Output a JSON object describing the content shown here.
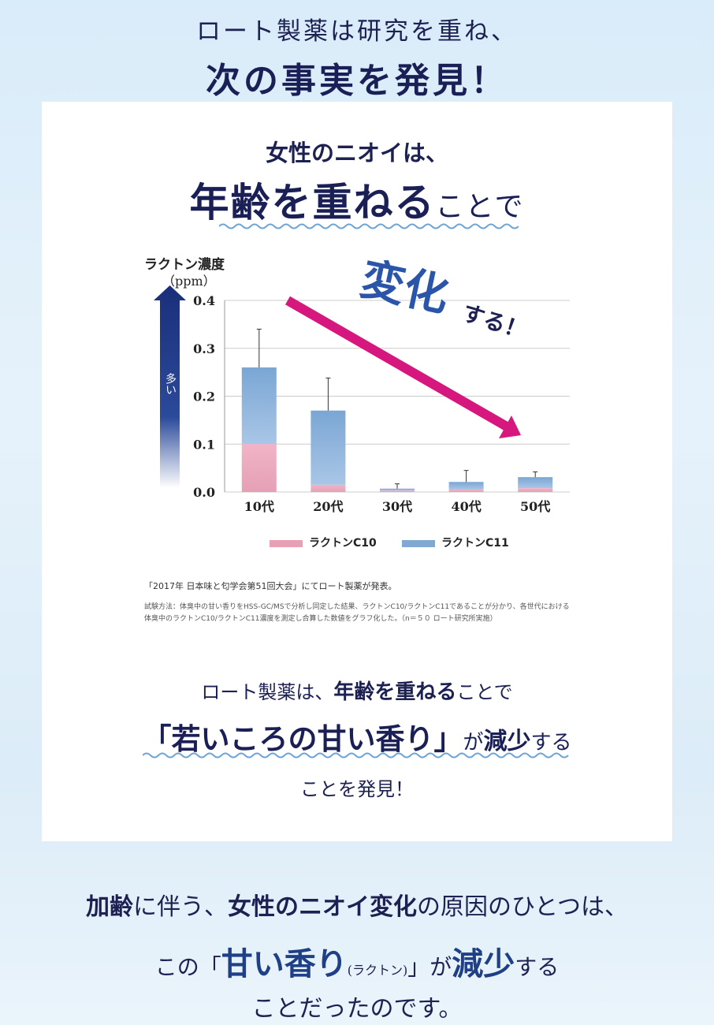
{
  "header": {
    "line1": "ロート製薬は研究を重ね、",
    "line2": "次の事実を発見！"
  },
  "card": {
    "subtitle": "女性のニオイは、",
    "title_strong": "年齢を重ねる",
    "title_rest": "ことで",
    "henka_big": "変化",
    "henka_rest": "する！",
    "source": "「2017年 日本味と匂学会第51回大会」にてロート製薬が発表。",
    "method": "試験方法：体臭中の甘い香りをHSS-GC/MSで分析し同定した結果、ラクトンC10/ラクトンC11であることが分かり、各世代における体臭中のラクトンC10/ラクトンC11濃度を測定し合算した数値をグラフ化した。（n＝５０ ロート研究所実施）",
    "conclusion_line1_a": "ロート製薬は、",
    "conclusion_line1_b": "年齢を重ねる",
    "conclusion_line1_c": "ことで",
    "conclusion_line2_a": "「若いころの甘い香り」",
    "conclusion_line2_b": "が",
    "conclusion_line2_c": "減少",
    "conclusion_line2_d": "する",
    "conclusion_line3": "ことを発見！"
  },
  "bottom": {
    "line1_a": "加齢",
    "line1_b": "に伴う、",
    "line1_c": "女性のニオイ変化",
    "line1_d": "の原因のひとつは、",
    "line2_a": "この「",
    "line2_b": "甘い香り",
    "line2_c": "(ラクトン)",
    "line2_d": "」が",
    "line2_e": "減少",
    "line2_f": "する",
    "line3": "ことだったのです。"
  },
  "chart_data": {
    "type": "bar",
    "stacked": true,
    "title": "",
    "ylabel": "ラクトン濃度",
    "yunit": "（ppm）",
    "yarrow_label": "多い",
    "categories": [
      "10代",
      "20代",
      "30代",
      "40代",
      "50代"
    ],
    "yticks": [
      "0.4",
      "0.3",
      "0.2",
      "0.1",
      "0.0"
    ],
    "ylim": [
      0,
      0.4
    ],
    "grid": true,
    "legend_position": "bottom",
    "series": [
      {
        "name": "ラクトンC10",
        "color": "#e8a0b4",
        "values": [
          0.1,
          0.015,
          0.003,
          0.005,
          0.008
        ]
      },
      {
        "name": "ラクトンC11",
        "color": "#7fa8d3",
        "values": [
          0.16,
          0.155,
          0.004,
          0.016,
          0.023
        ]
      }
    ],
    "error_bar_tops": [
      0.34,
      0.238,
      0.017,
      0.045,
      0.042
    ],
    "trend_arrow_color": "#d6177e",
    "colors": {
      "axis_arrow": "#1a2f7a",
      "title_navy": "#1a1f55",
      "wave": "#6da4d6"
    }
  }
}
